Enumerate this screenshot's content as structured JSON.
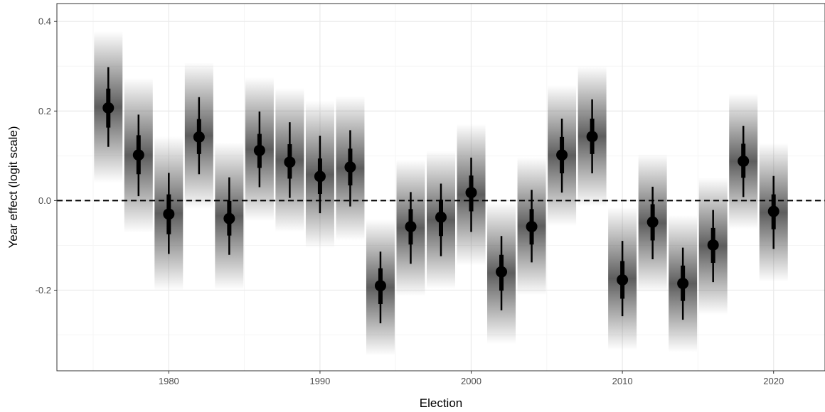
{
  "chart_data": {
    "type": "scatter",
    "xlabel": "Election",
    "ylabel": "Year effect (logit scale)",
    "xlim": [
      1972.6,
      2023.4
    ],
    "ylim": [
      -0.38,
      0.44
    ],
    "x_ticks": [
      1980,
      1990,
      2000,
      2010,
      2020
    ],
    "x_tick_labels": [
      "1980",
      "1990",
      "2000",
      "2010",
      "2020"
    ],
    "y_ticks": [
      -0.2,
      0.0,
      0.2,
      0.4
    ],
    "y_tick_labels": [
      "-0.2",
      "0.0",
      "0.2",
      "0.4"
    ],
    "reference_line": {
      "y": 0,
      "style": "dashed"
    },
    "grid": true,
    "legend": "none",
    "interval_shading": "gradient",
    "series": [
      {
        "x": [
          1976,
          1978,
          1980,
          1982,
          1984,
          1986,
          1988,
          1990,
          1992,
          1994,
          1996,
          1998,
          2000,
          2002,
          2004,
          2006,
          2008,
          2010,
          2012,
          2014,
          2016,
          2018,
          2020
        ],
        "y": [
          0.207,
          0.102,
          -0.03,
          0.142,
          -0.04,
          0.112,
          0.086,
          0.054,
          0.075,
          -0.19,
          -0.058,
          -0.037,
          0.018,
          -0.159,
          -0.058,
          0.102,
          0.143,
          -0.177,
          -0.048,
          -0.185,
          -0.099,
          0.088,
          -0.024
        ],
        "inner_lower": [
          0.163,
          0.059,
          -0.075,
          0.104,
          -0.078,
          0.073,
          0.049,
          0.015,
          0.034,
          -0.231,
          -0.098,
          -0.079,
          -0.024,
          -0.201,
          -0.098,
          0.061,
          0.104,
          -0.219,
          -0.089,
          -0.224,
          -0.139,
          0.051,
          -0.064
        ],
        "inner_upper": [
          0.25,
          0.146,
          0.014,
          0.182,
          -0.001,
          0.149,
          0.126,
          0.094,
          0.116,
          -0.151,
          -0.019,
          0.002,
          0.056,
          -0.121,
          -0.019,
          0.142,
          0.183,
          -0.135,
          -0.008,
          -0.145,
          -0.061,
          0.127,
          0.014
        ],
        "outer_lower": [
          0.12,
          0.01,
          -0.119,
          0.059,
          -0.121,
          0.03,
          0.006,
          -0.028,
          -0.013,
          -0.274,
          -0.141,
          -0.124,
          -0.07,
          -0.245,
          -0.138,
          0.018,
          0.061,
          -0.258,
          -0.131,
          -0.266,
          -0.182,
          0.008,
          -0.108
        ],
        "outer_upper": [
          0.298,
          0.192,
          0.062,
          0.231,
          0.052,
          0.199,
          0.175,
          0.145,
          0.157,
          -0.114,
          0.019,
          0.038,
          0.096,
          -0.079,
          0.024,
          0.183,
          0.226,
          -0.09,
          0.031,
          -0.105,
          -0.021,
          0.167,
          0.055
        ]
      }
    ]
  },
  "colors": {
    "point": "#000000",
    "grid_major": "#ebebeb",
    "grid_minor": "#f5f5f5",
    "panel_border": "#333333",
    "tick_text": "#4d4d4d",
    "reference_line": "#000000",
    "shade": "#555555"
  }
}
